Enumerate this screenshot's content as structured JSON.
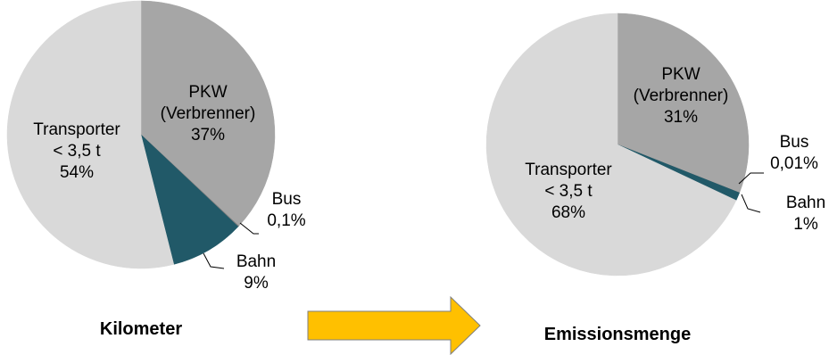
{
  "colors": {
    "pkw": "#a6a6a6",
    "bus": "#7f7f7f",
    "bahn": "#215968",
    "transporter": "#d9d9d9",
    "arrow_fill": "#ffc000",
    "arrow_stroke": "#7f7f7f"
  },
  "chart_data": [
    {
      "type": "pie",
      "title": "Kilometer",
      "slices": [
        {
          "label_lines": [
            "PKW",
            "(Verbrenner)",
            "37%"
          ],
          "value": 37,
          "color_key": "pkw"
        },
        {
          "label_lines": [
            "Bus",
            "0,1%"
          ],
          "value": 0.1,
          "color_key": "bus"
        },
        {
          "label_lines": [
            "Bahn",
            "9%"
          ],
          "value": 9,
          "color_key": "bahn"
        },
        {
          "label_lines": [
            "Transporter",
            "< 3,5 t",
            "54%"
          ],
          "value": 54,
          "color_key": "transporter"
        }
      ]
    },
    {
      "type": "pie",
      "title": "Emissionsmenge",
      "slices": [
        {
          "label_lines": [
            "PKW",
            "(Verbrenner)",
            "31%"
          ],
          "value": 31,
          "color_key": "pkw"
        },
        {
          "label_lines": [
            "Bus",
            "0,01%"
          ],
          "value": 0.01,
          "color_key": "bus"
        },
        {
          "label_lines": [
            "Bahn",
            "1%"
          ],
          "value": 1,
          "color_key": "bahn"
        },
        {
          "label_lines": [
            "Transporter",
            "< 3,5 t",
            "68%"
          ],
          "value": 68,
          "color_key": "transporter"
        }
      ]
    }
  ],
  "arrow": {
    "icon": "right-arrow-icon"
  }
}
